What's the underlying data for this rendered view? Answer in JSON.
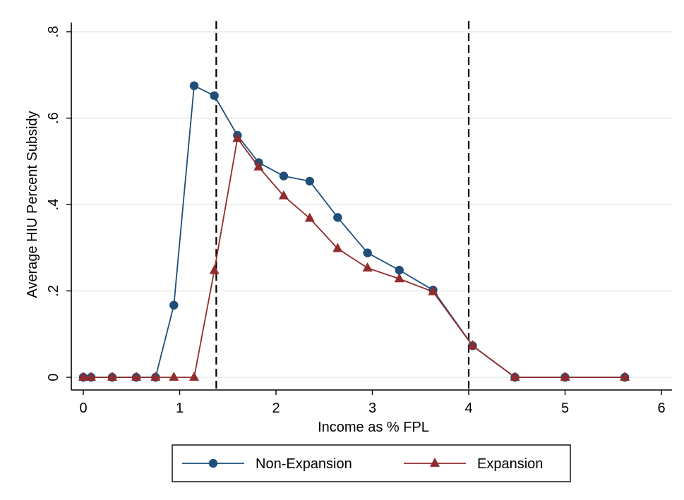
{
  "chart_data": {
    "type": "line",
    "title": "",
    "xlabel": "Income as % FPL",
    "ylabel": "Average HIU Percent Subsidy",
    "xlim": [
      0,
      6
    ],
    "ylim": [
      0,
      0.8
    ],
    "x_ticks": [
      {
        "value": 0,
        "label": "0"
      },
      {
        "value": 1,
        "label": "1"
      },
      {
        "value": 2,
        "label": "2"
      },
      {
        "value": 3,
        "label": "3"
      },
      {
        "value": 4,
        "label": "4"
      },
      {
        "value": 5,
        "label": "5"
      },
      {
        "value": 6,
        "label": "6"
      }
    ],
    "y_ticks": [
      {
        "value": 0,
        "label": "0"
      },
      {
        "value": 0.2,
        "label": ".2"
      },
      {
        "value": 0.4,
        "label": ".4"
      },
      {
        "value": 0.6,
        "label": ".6"
      },
      {
        "value": 0.8,
        "label": ".8"
      }
    ],
    "grid": "horizontal",
    "legend_position": "bottom",
    "vlines": [
      1.38,
      4.0
    ],
    "series": [
      {
        "name": "Non-Expansion",
        "color": "#1f4e79",
        "marker": "circle",
        "points": [
          [
            0.0,
            0.0
          ],
          [
            0.08,
            0.0
          ],
          [
            0.3,
            0.0
          ],
          [
            0.55,
            0.0
          ],
          [
            0.75,
            0.0
          ],
          [
            0.94,
            0.167
          ],
          [
            1.15,
            0.675
          ],
          [
            1.36,
            0.652
          ],
          [
            1.6,
            0.56
          ],
          [
            1.82,
            0.497
          ],
          [
            2.08,
            0.466
          ],
          [
            2.35,
            0.454
          ],
          [
            2.64,
            0.37
          ],
          [
            2.95,
            0.288
          ],
          [
            3.28,
            0.248
          ],
          [
            3.63,
            0.202
          ],
          [
            4.04,
            0.073
          ],
          [
            4.48,
            0.0
          ],
          [
            5.0,
            0.0
          ],
          [
            5.62,
            0.0
          ]
        ]
      },
      {
        "name": "Expansion",
        "color": "#922b2b",
        "marker": "triangle",
        "points": [
          [
            0.0,
            0.0
          ],
          [
            0.08,
            0.0
          ],
          [
            0.3,
            0.0
          ],
          [
            0.55,
            0.0
          ],
          [
            0.75,
            0.0
          ],
          [
            0.94,
            0.0
          ],
          [
            1.15,
            0.0
          ],
          [
            1.36,
            0.247
          ],
          [
            1.6,
            0.553
          ],
          [
            1.82,
            0.487
          ],
          [
            2.08,
            0.42
          ],
          [
            2.35,
            0.368
          ],
          [
            2.64,
            0.298
          ],
          [
            2.95,
            0.253
          ],
          [
            3.28,
            0.228
          ],
          [
            3.63,
            0.198
          ],
          [
            4.04,
            0.073
          ],
          [
            4.48,
            0.0
          ],
          [
            5.0,
            0.0
          ],
          [
            5.62,
            0.0
          ]
        ]
      }
    ]
  }
}
